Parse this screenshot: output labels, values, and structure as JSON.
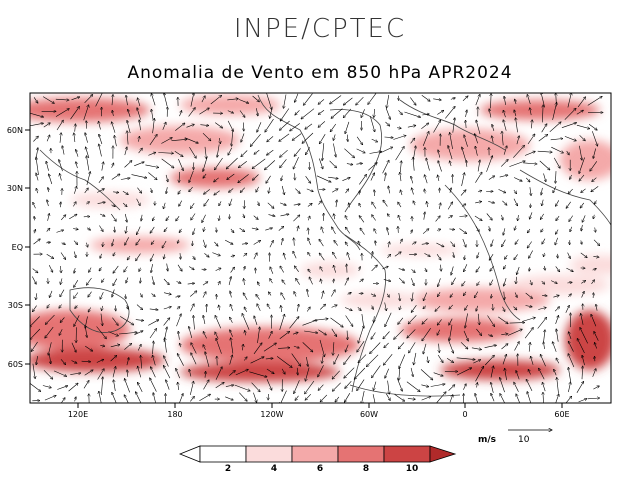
{
  "header": {
    "org": "INPE/CPTEC",
    "title": "Anomalia de Vento em 850 hPa APR2024"
  },
  "map": {
    "lat_labels": [
      "60N",
      "30N",
      "EQ",
      "30S",
      "60S"
    ],
    "lon_labels": [
      "120E",
      "180",
      "120W",
      "60W",
      "0",
      "60E"
    ]
  },
  "reference_vector": {
    "unit": "m/s",
    "value": "10"
  },
  "colorbar": {
    "ticks": [
      "2",
      "4",
      "6",
      "8",
      "10"
    ],
    "colors": [
      "#ffffff",
      "#fbdcdc",
      "#f4a9a9",
      "#e57373",
      "#cc4444",
      "#b02a2a"
    ]
  },
  "colors": {
    "frame": "#000000",
    "arrow": "#000000",
    "coast": "#444444"
  }
}
